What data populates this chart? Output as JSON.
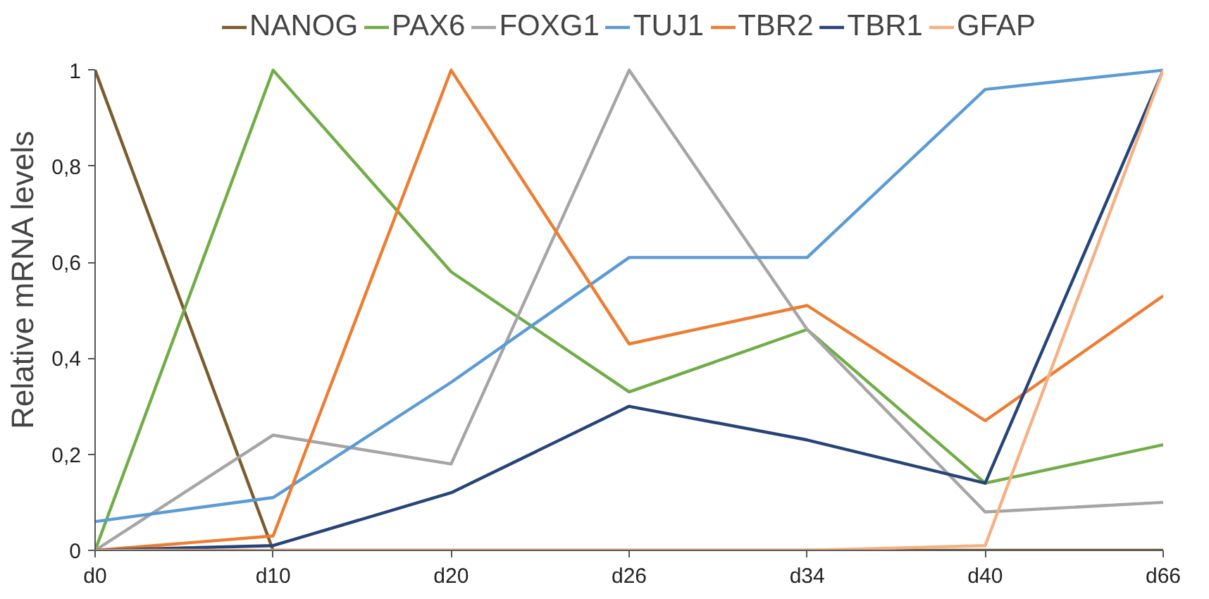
{
  "chart_data": {
    "type": "line",
    "ylabel": "Relative mRNA levels",
    "categories": [
      "d0",
      "d10",
      "d20",
      "d26",
      "d34",
      "d40",
      "d66"
    ],
    "series": [
      {
        "name": "NANOG",
        "color": "#7a5c2e",
        "values": [
          1,
          0,
          0,
          0,
          0,
          0,
          0
        ]
      },
      {
        "name": "PAX6",
        "color": "#70ad47",
        "values": [
          0,
          1,
          0.58,
          0.33,
          0.46,
          0.14,
          0.22
        ]
      },
      {
        "name": "FOXG1",
        "color": "#a5a5a5",
        "values": [
          0,
          0.24,
          0.18,
          1,
          0.46,
          0.08,
          0.1
        ]
      },
      {
        "name": "TUJ1",
        "color": "#5b9bd5",
        "values": [
          0.06,
          0.11,
          0.35,
          0.61,
          0.61,
          0.96,
          1
        ]
      },
      {
        "name": "TBR2",
        "color": "#ed7d31",
        "values": [
          0,
          0.03,
          1,
          0.43,
          0.51,
          0.27,
          0.53
        ]
      },
      {
        "name": "TBR1",
        "color": "#264478",
        "values": [
          0,
          0.01,
          0.12,
          0.3,
          0.23,
          0.14,
          1
        ]
      },
      {
        "name": "GFAP",
        "color": "#f4b183",
        "values": [
          0,
          0,
          0,
          0,
          0,
          0.01,
          1
        ]
      }
    ],
    "ylim": [
      0,
      1
    ],
    "yticks": [
      0,
      {
        "value": 0.2,
        "label": "0,2"
      },
      {
        "value": 0.4,
        "label": "0,4"
      },
      {
        "value": 0.6,
        "label": "0,6"
      },
      {
        "value": 0.8,
        "label": "0,8"
      },
      1
    ],
    "grid": false,
    "legend": "top",
    "marker": "none",
    "line_style": "solid"
  }
}
